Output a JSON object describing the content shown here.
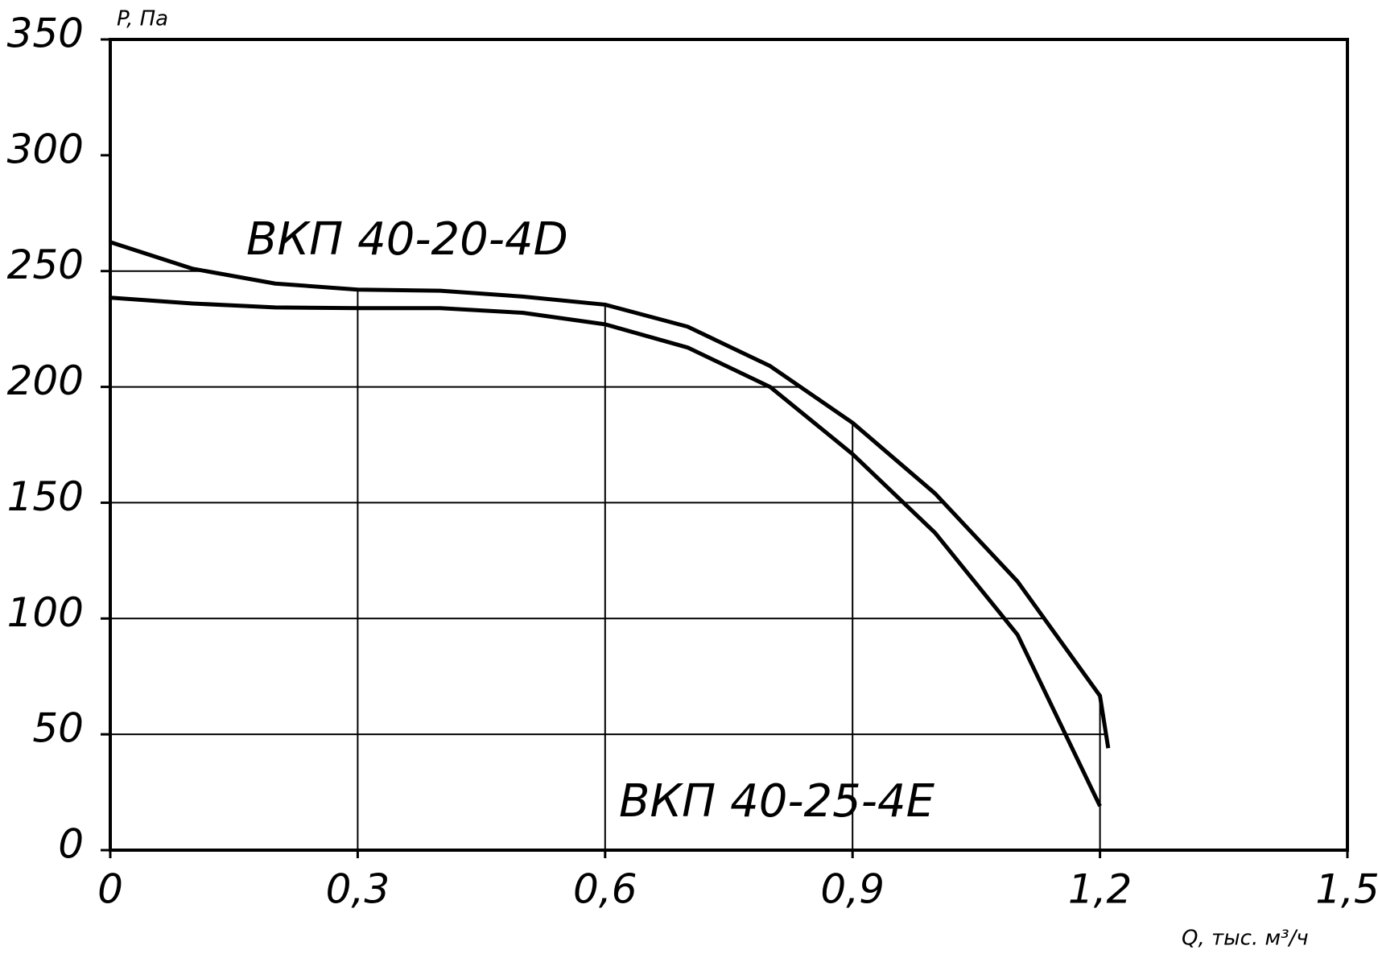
{
  "chart_data": {
    "type": "line",
    "y_label": "P, Па",
    "x_label": "Q, тыс. м³/ч",
    "xlim": [
      0,
      1.5
    ],
    "xticks": [
      0,
      {
        "value": 0.3,
        "label": "0,3"
      },
      {
        "value": 0.6,
        "label": "0,6"
      },
      {
        "value": 0.9,
        "label": "0,9"
      },
      {
        "value": 1.2,
        "label": "1,2"
      },
      {
        "value": 1.5,
        "label": "1,5"
      }
    ],
    "ylim": [
      0,
      350
    ],
    "yticks": [
      0,
      50,
      100,
      150,
      200,
      250,
      300,
      350
    ],
    "grid": true,
    "series": [
      {
        "name": "ВКП 40-20-4D",
        "color": "#000000",
        "x": [
          0,
          0.1,
          0.2,
          0.3,
          0.4,
          0.5,
          0.6,
          0.7,
          0.8,
          0.9,
          1.0,
          1.1,
          1.2,
          1.21
        ],
        "values": [
          262.5,
          251,
          244.6,
          242,
          241.5,
          239,
          235.5,
          226,
          209,
          184.5,
          154,
          116,
          66.6,
          44
        ]
      },
      {
        "name": "ВКП 40-25-4E",
        "color": "#000000",
        "x": [
          0,
          0.1,
          0.2,
          0.3,
          0.4,
          0.5,
          0.6,
          0.7,
          0.8,
          0.9,
          1.0,
          1.1,
          1.2
        ],
        "values": [
          238.5,
          236,
          234.3,
          234,
          234,
          232,
          227,
          217,
          200,
          171,
          137,
          93,
          19
        ]
      }
    ]
  }
}
